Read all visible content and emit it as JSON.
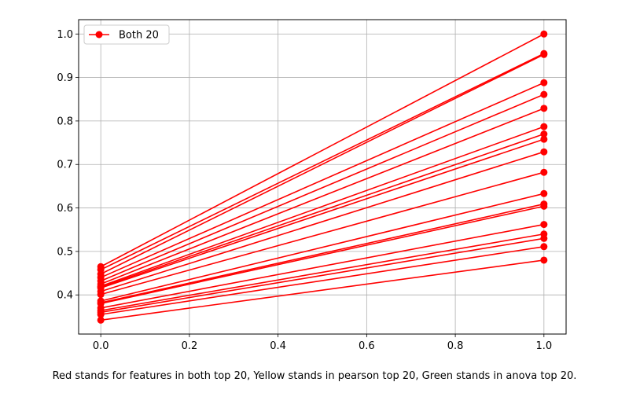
{
  "chart_data": {
    "type": "line",
    "series_color": "#ff0000",
    "legend": {
      "label": "Both 20",
      "placement": "top-left"
    },
    "grid": true,
    "xlim": [
      -0.05,
      1.05
    ],
    "ylim": [
      0.31,
      1.033
    ],
    "x_ticks": [
      {
        "value": 0.0,
        "label": "0.0"
      },
      {
        "value": 0.2,
        "label": "0.2"
      },
      {
        "value": 0.4,
        "label": "0.4"
      },
      {
        "value": 0.6,
        "label": "0.6"
      },
      {
        "value": 0.8,
        "label": "0.8"
      },
      {
        "value": 1.0,
        "label": "1.0"
      }
    ],
    "y_ticks": [
      {
        "value": 0.4,
        "label": "0.4"
      },
      {
        "value": 0.5,
        "label": "0.5"
      },
      {
        "value": 0.6,
        "label": "0.6"
      },
      {
        "value": 0.7,
        "label": "0.7"
      },
      {
        "value": 0.8,
        "label": "0.8"
      },
      {
        "value": 0.9,
        "label": "0.9"
      },
      {
        "value": 1.0,
        "label": "1.0"
      }
    ],
    "x": [
      0,
      1
    ],
    "lines": [
      [
        0.465,
        1.0
      ],
      [
        0.458,
        0.955
      ],
      [
        0.448,
        0.953
      ],
      [
        0.44,
        0.888
      ],
      [
        0.432,
        0.861
      ],
      [
        0.425,
        0.829
      ],
      [
        0.42,
        0.787
      ],
      [
        0.418,
        0.77
      ],
      [
        0.416,
        0.758
      ],
      [
        0.408,
        0.729
      ],
      [
        0.401,
        0.682
      ],
      [
        0.386,
        0.633
      ],
      [
        0.382,
        0.609
      ],
      [
        0.38,
        0.604
      ],
      [
        0.37,
        0.562
      ],
      [
        0.364,
        0.54
      ],
      [
        0.36,
        0.53
      ],
      [
        0.355,
        0.511
      ],
      [
        0.342,
        0.48
      ]
    ]
  },
  "caption": "Red stands for features in both top 20, Yellow stands in pearson top 20, Green stands in anova top 20."
}
